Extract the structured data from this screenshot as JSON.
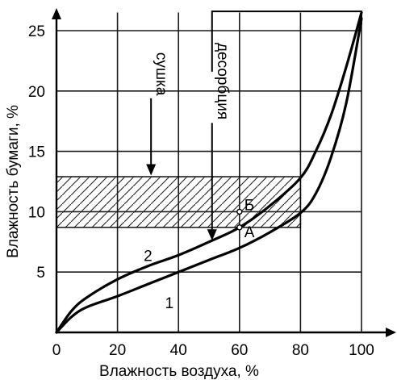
{
  "chart_data": {
    "type": "line",
    "xlabel": "Влажность воздуха, %",
    "ylabel": "Влажность бумаги, %",
    "xlim": [
      0,
      100
    ],
    "ylim": [
      0,
      27
    ],
    "xticks": [
      0,
      20,
      40,
      60,
      80,
      100
    ],
    "yticks": [
      5,
      10,
      15,
      20,
      25
    ],
    "grid": true,
    "series": [
      {
        "name": "1",
        "x": [
          0,
          5,
          10,
          20,
          30,
          40,
          50,
          60,
          70,
          80,
          85,
          90,
          95,
          100
        ],
        "y": [
          0,
          1.3,
          2.1,
          3.0,
          4.0,
          5.0,
          6.0,
          7.0,
          8.3,
          9.9,
          11.5,
          14.5,
          19.0,
          26.0
        ]
      },
      {
        "name": "2",
        "x": [
          0,
          5,
          10,
          20,
          30,
          40,
          50,
          60,
          70,
          80,
          85,
          90,
          95,
          100
        ],
        "y": [
          0,
          1.8,
          2.9,
          4.4,
          5.5,
          6.4,
          7.5,
          8.7,
          10.5,
          12.8,
          15.0,
          18.0,
          22.0,
          26.5
        ]
      }
    ],
    "band": {
      "x": [
        0,
        80
      ],
      "y": [
        8.7,
        12.9
      ]
    },
    "points": [
      {
        "label": "А",
        "x": 60,
        "y": 8.7
      },
      {
        "label": "Б",
        "x": 60,
        "y": 10.0
      }
    ],
    "annotations": [
      {
        "text": "сушка",
        "x": 31,
        "y": 23.2,
        "arrow_to": [
          31,
          13.0
        ]
      },
      {
        "text": "десорбция",
        "x": 51,
        "y": 24.0,
        "arrow_to": [
          51,
          7.6
        ]
      }
    ],
    "loop": {
      "x_left": 51,
      "x_right": 100,
      "y_top": 26.6
    }
  }
}
